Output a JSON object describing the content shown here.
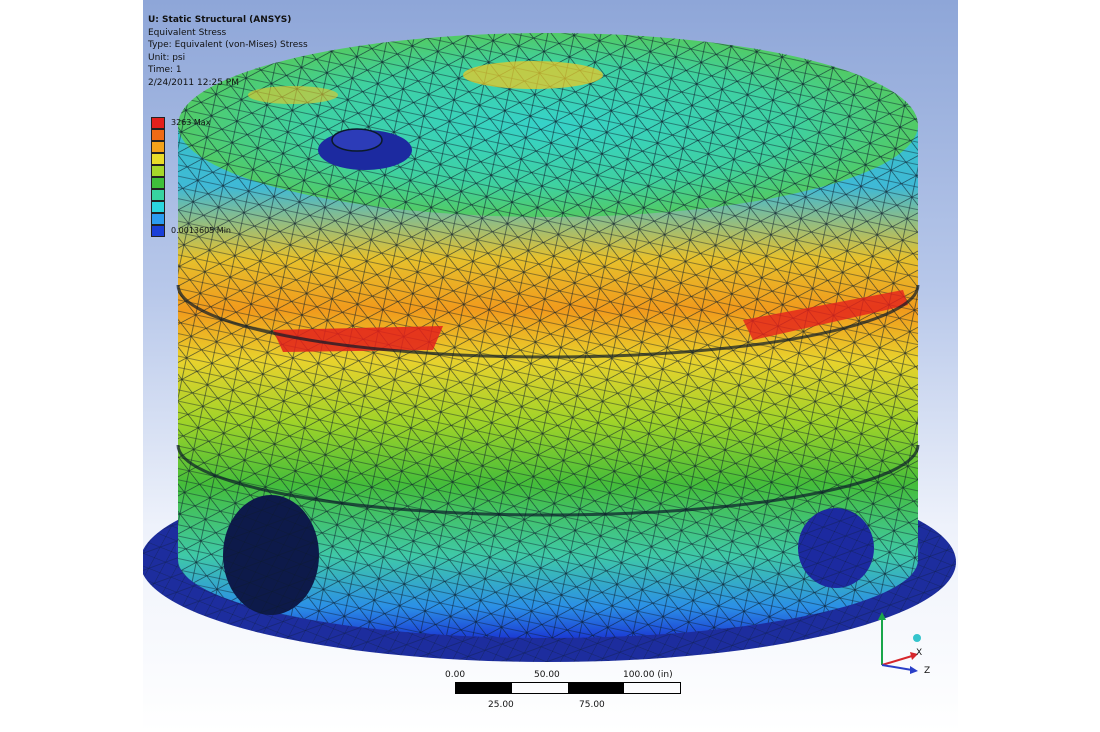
{
  "header": {
    "title": "U: Static Structural (ANSYS)",
    "result": "Equivalent Stress",
    "type": "Type: Equivalent (von-Mises) Stress",
    "unit": "Unit: psi",
    "time": "Time: 1",
    "date": "2/24/2011 12:25 PM"
  },
  "legend": {
    "max_label": "3263 Max",
    "min_label": "0.0013605 Min",
    "colors": [
      "#e3201b",
      "#f06a14",
      "#f3a21a",
      "#e9dc29",
      "#a6d82a",
      "#3fc03a",
      "#37d3a0",
      "#2bd6df",
      "#2c9cf0",
      "#1a3fd8"
    ]
  },
  "scale": {
    "labels_top": [
      "0.00",
      "50.00",
      "100.00 (in)"
    ],
    "labels_bottom": [
      "25.00",
      "75.00"
    ]
  },
  "triad": {
    "axes": [
      "Y",
      "X",
      "Z"
    ]
  },
  "colors": {
    "viewport_top": "#8ea6d8",
    "mesh_line": "#0b1a2a",
    "base_ring": "#1d2d9e"
  }
}
